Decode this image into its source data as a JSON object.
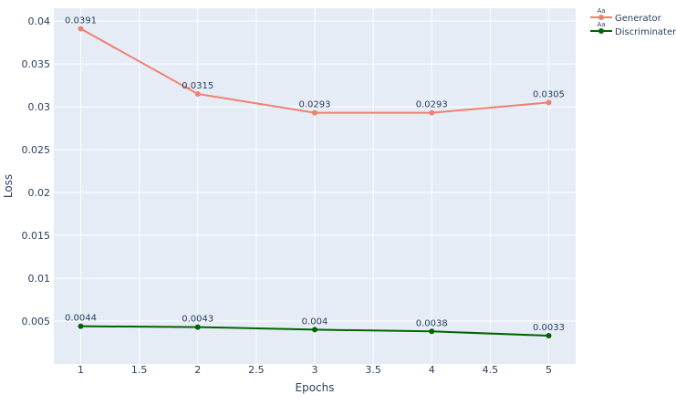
{
  "chart_data": {
    "type": "line",
    "x": [
      1,
      2,
      3,
      4,
      5
    ],
    "series": [
      {
        "name": "Generator",
        "values": [
          0.0391,
          0.0315,
          0.0293,
          0.0293,
          0.0305
        ],
        "labels": [
          "0.0391",
          "0.0315",
          "0.0293",
          "0.0293",
          "0.0305"
        ],
        "color": "#f08070"
      },
      {
        "name": "Discriminater",
        "values": [
          0.0044,
          0.0043,
          0.004,
          0.0038,
          0.0033
        ],
        "labels": [
          "0.0044",
          "0.0043",
          "0.004",
          "0.0038",
          "0.0033"
        ],
        "color": "#006400"
      }
    ],
    "xlabel": "Epochs",
    "ylabel": "Loss",
    "xlim": [
      0.77,
      5.23
    ],
    "ylim": [
      0.0,
      0.0415
    ],
    "xticks": [
      1,
      1.5,
      2,
      2.5,
      3,
      3.5,
      4,
      4.5,
      5
    ],
    "xtick_labels": [
      "1",
      "1.5",
      "2",
      "2.5",
      "3",
      "3.5",
      "4",
      "4.5",
      "5"
    ],
    "yticks": [
      0.005,
      0.01,
      0.015,
      0.02,
      0.025,
      0.03,
      0.035,
      0.04
    ],
    "ytick_labels": [
      "0.005",
      "0.01",
      "0.015",
      "0.02",
      "0.025",
      "0.03",
      "0.035",
      "0.04"
    ],
    "grid": true,
    "plot_bgcolor": "#e5ecf6",
    "legend_position": "top-right",
    "legend_marker_text": "Aa"
  }
}
